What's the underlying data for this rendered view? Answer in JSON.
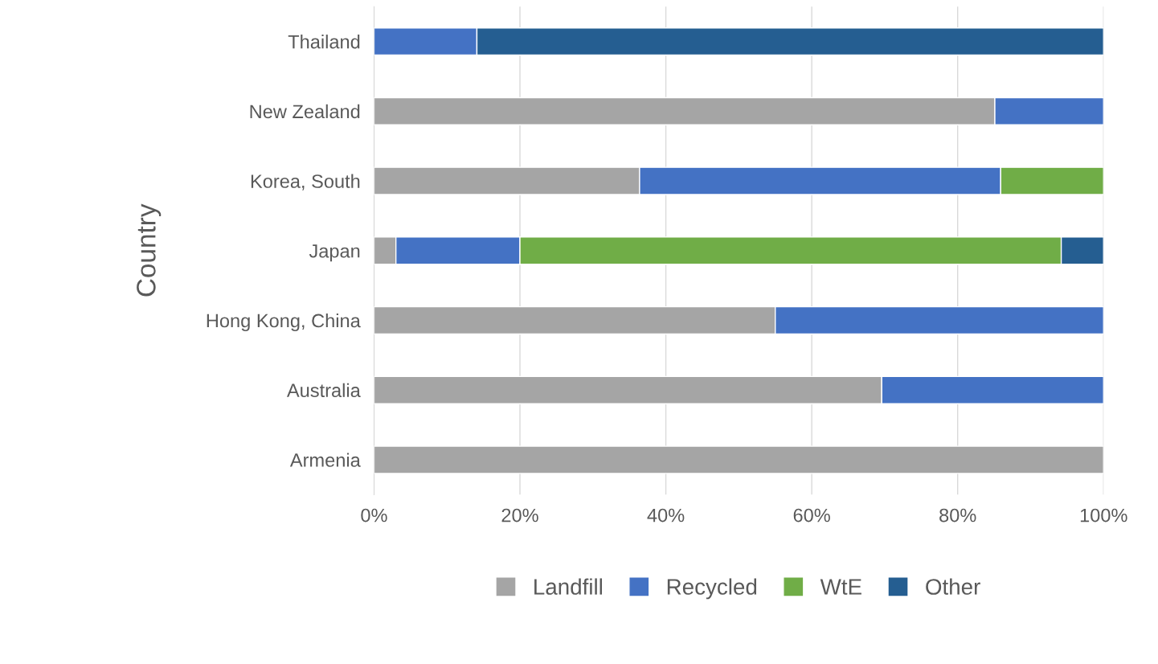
{
  "chart_data": {
    "type": "bar",
    "orientation": "horizontal",
    "stacked": true,
    "ylabel": "Country",
    "categories": [
      "Thailand",
      "New Zealand",
      "Korea, South",
      "Japan",
      "Hong Kong, China",
      "Australia",
      "Armenia"
    ],
    "series": [
      {
        "name": "Landfill",
        "color": "#a5a5a5",
        "values": [
          null,
          85.1,
          36.4,
          3.0,
          55.0,
          69.6,
          100
        ]
      },
      {
        "name": "Recycled",
        "color": "#4472c4",
        "values": [
          14.1,
          14.9,
          49.5,
          17.0,
          45.0,
          30.4,
          null
        ]
      },
      {
        "name": "WtE",
        "color": "#70ad47",
        "values": [
          null,
          null,
          14.1,
          74.2,
          null,
          null,
          null
        ]
      },
      {
        "name": "Other",
        "color": "#255e91",
        "values": [
          85.9,
          null,
          null,
          5.8,
          null,
          null,
          null
        ]
      }
    ],
    "xlim": [
      0,
      100
    ],
    "xticks": [
      {
        "value": 0,
        "label": "0%"
      },
      {
        "value": 20,
        "label": "20%"
      },
      {
        "value": 40,
        "label": "40%"
      },
      {
        "value": 60,
        "label": "60%"
      },
      {
        "value": 80,
        "label": "80%"
      },
      {
        "value": 100,
        "label": "100%"
      }
    ],
    "grid": "x",
    "legend": "bottom"
  }
}
